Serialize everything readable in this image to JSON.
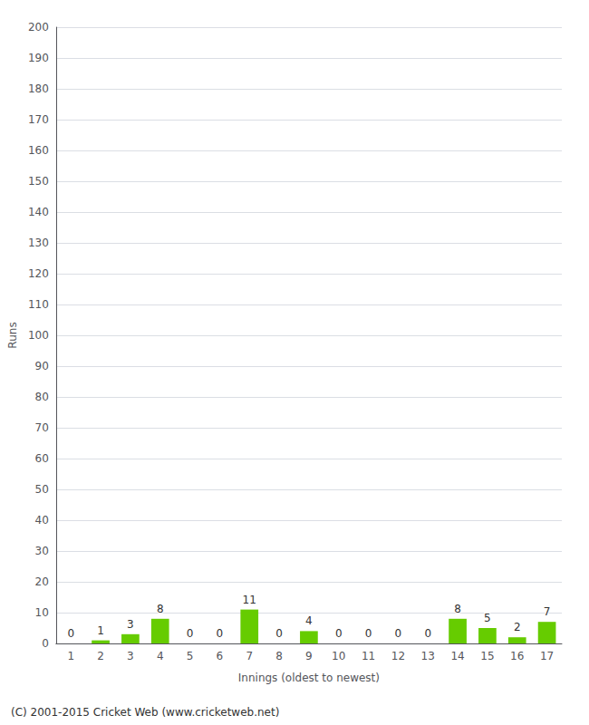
{
  "chart_data": {
    "type": "bar",
    "categories": [
      "1",
      "2",
      "3",
      "4",
      "5",
      "6",
      "7",
      "8",
      "9",
      "10",
      "11",
      "12",
      "13",
      "14",
      "15",
      "16",
      "17"
    ],
    "values": [
      0,
      1,
      3,
      8,
      0,
      0,
      11,
      0,
      4,
      0,
      0,
      0,
      0,
      8,
      5,
      2,
      7
    ],
    "color": "#66cc00",
    "xlabel": "Innings (oldest to newest)",
    "ylabel": "Runs",
    "annotations": [
      "(C) 2001-2015 Cricket Web (www.cricketweb.net)"
    ],
    "ylim": [
      0,
      200
    ],
    "yticks": [
      0,
      10,
      20,
      30,
      40,
      50,
      60,
      70,
      80,
      90,
      100,
      110,
      120,
      130,
      140,
      150,
      160,
      170,
      180,
      190,
      200
    ],
    "grid": true,
    "data_labels": true
  }
}
